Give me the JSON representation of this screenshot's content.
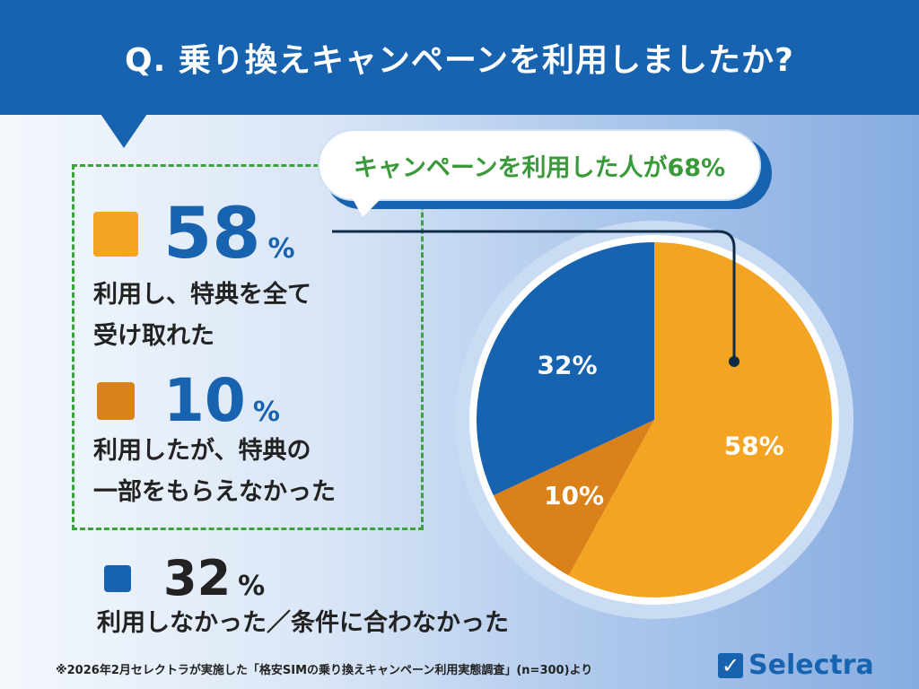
{
  "title": "Q. 乗り換えキャンペーンを利用しましたか?",
  "callout": "キャンペーンを利用した人が68%",
  "legend": [
    {
      "value": "58",
      "unit": "%",
      "label": "利用し、特典を全て\n受け取れた",
      "color": "#f3a423"
    },
    {
      "value": "10",
      "unit": "%",
      "label": "利用したが、特典の\n一部をもらえなかった",
      "color": "#da8119"
    },
    {
      "value": "32",
      "unit": "%",
      "label": "利用しなかった／条件に合わなかった",
      "color": "#1763b0"
    }
  ],
  "chart_data": {
    "type": "pie",
    "categories": [
      "利用し、特典を全て受け取れた",
      "利用したが、特典の一部をもらえなかった",
      "利用しなかった／条件に合わなかった"
    ],
    "values": [
      58,
      10,
      32
    ],
    "labels": [
      "58%",
      "10%",
      "32%"
    ],
    "colors": [
      "#f3a423",
      "#da8119",
      "#1763b0"
    ],
    "start": "12 o'clock, clockwise"
  },
  "footnote": "※2026年2月セレクトラが実施した「格安SIMの乗り換えキャンペーン利用実態調査」(n=300)より",
  "logo": "Selectra"
}
